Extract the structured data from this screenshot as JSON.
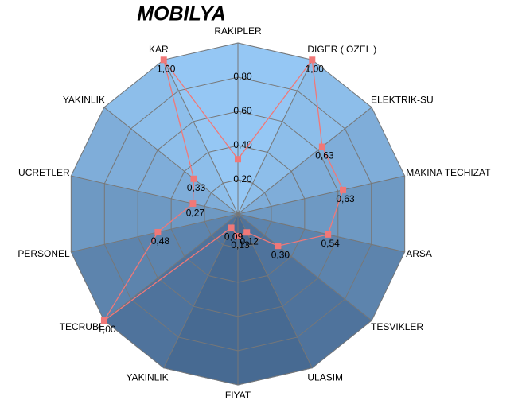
{
  "chart_data": {
    "type": "radar",
    "title": "MOBILYA",
    "categories": [
      "RAKIPLER",
      "DIGER ( OZEL )",
      "ELEKTRIK-SU",
      "MAKINA TECHIZAT",
      "ARSA",
      "TESVIKLER",
      "ULASIM",
      "FIYAT",
      "YAKINLIK",
      "TECRUBE",
      "PERSONEL",
      "UCRETLER",
      "YAKINLIK",
      "KAR"
    ],
    "series": [
      {
        "color": "#f07878",
        "values": [
          0.32,
          1.0,
          0.63,
          0.63,
          0.54,
          0.3,
          0.12,
          0.13,
          0.09,
          1.0,
          0.48,
          0.27,
          0.33,
          1.0
        ],
        "value_labels": [
          null,
          "1,00",
          "0,63",
          "0,63",
          "0,54",
          "0,30",
          "0,12",
          "0,13",
          "0,09",
          "1,00",
          "0,48",
          "0,27",
          "0,33",
          "1,00"
        ]
      }
    ],
    "rlim": [
      0,
      1
    ],
    "rticks": [
      {
        "value": 0.2,
        "label": "0,20"
      },
      {
        "value": 0.4,
        "label": "0,40"
      },
      {
        "value": 0.6,
        "label": "0,60"
      },
      {
        "value": 0.8,
        "label": "0,80"
      }
    ],
    "grid": true
  }
}
